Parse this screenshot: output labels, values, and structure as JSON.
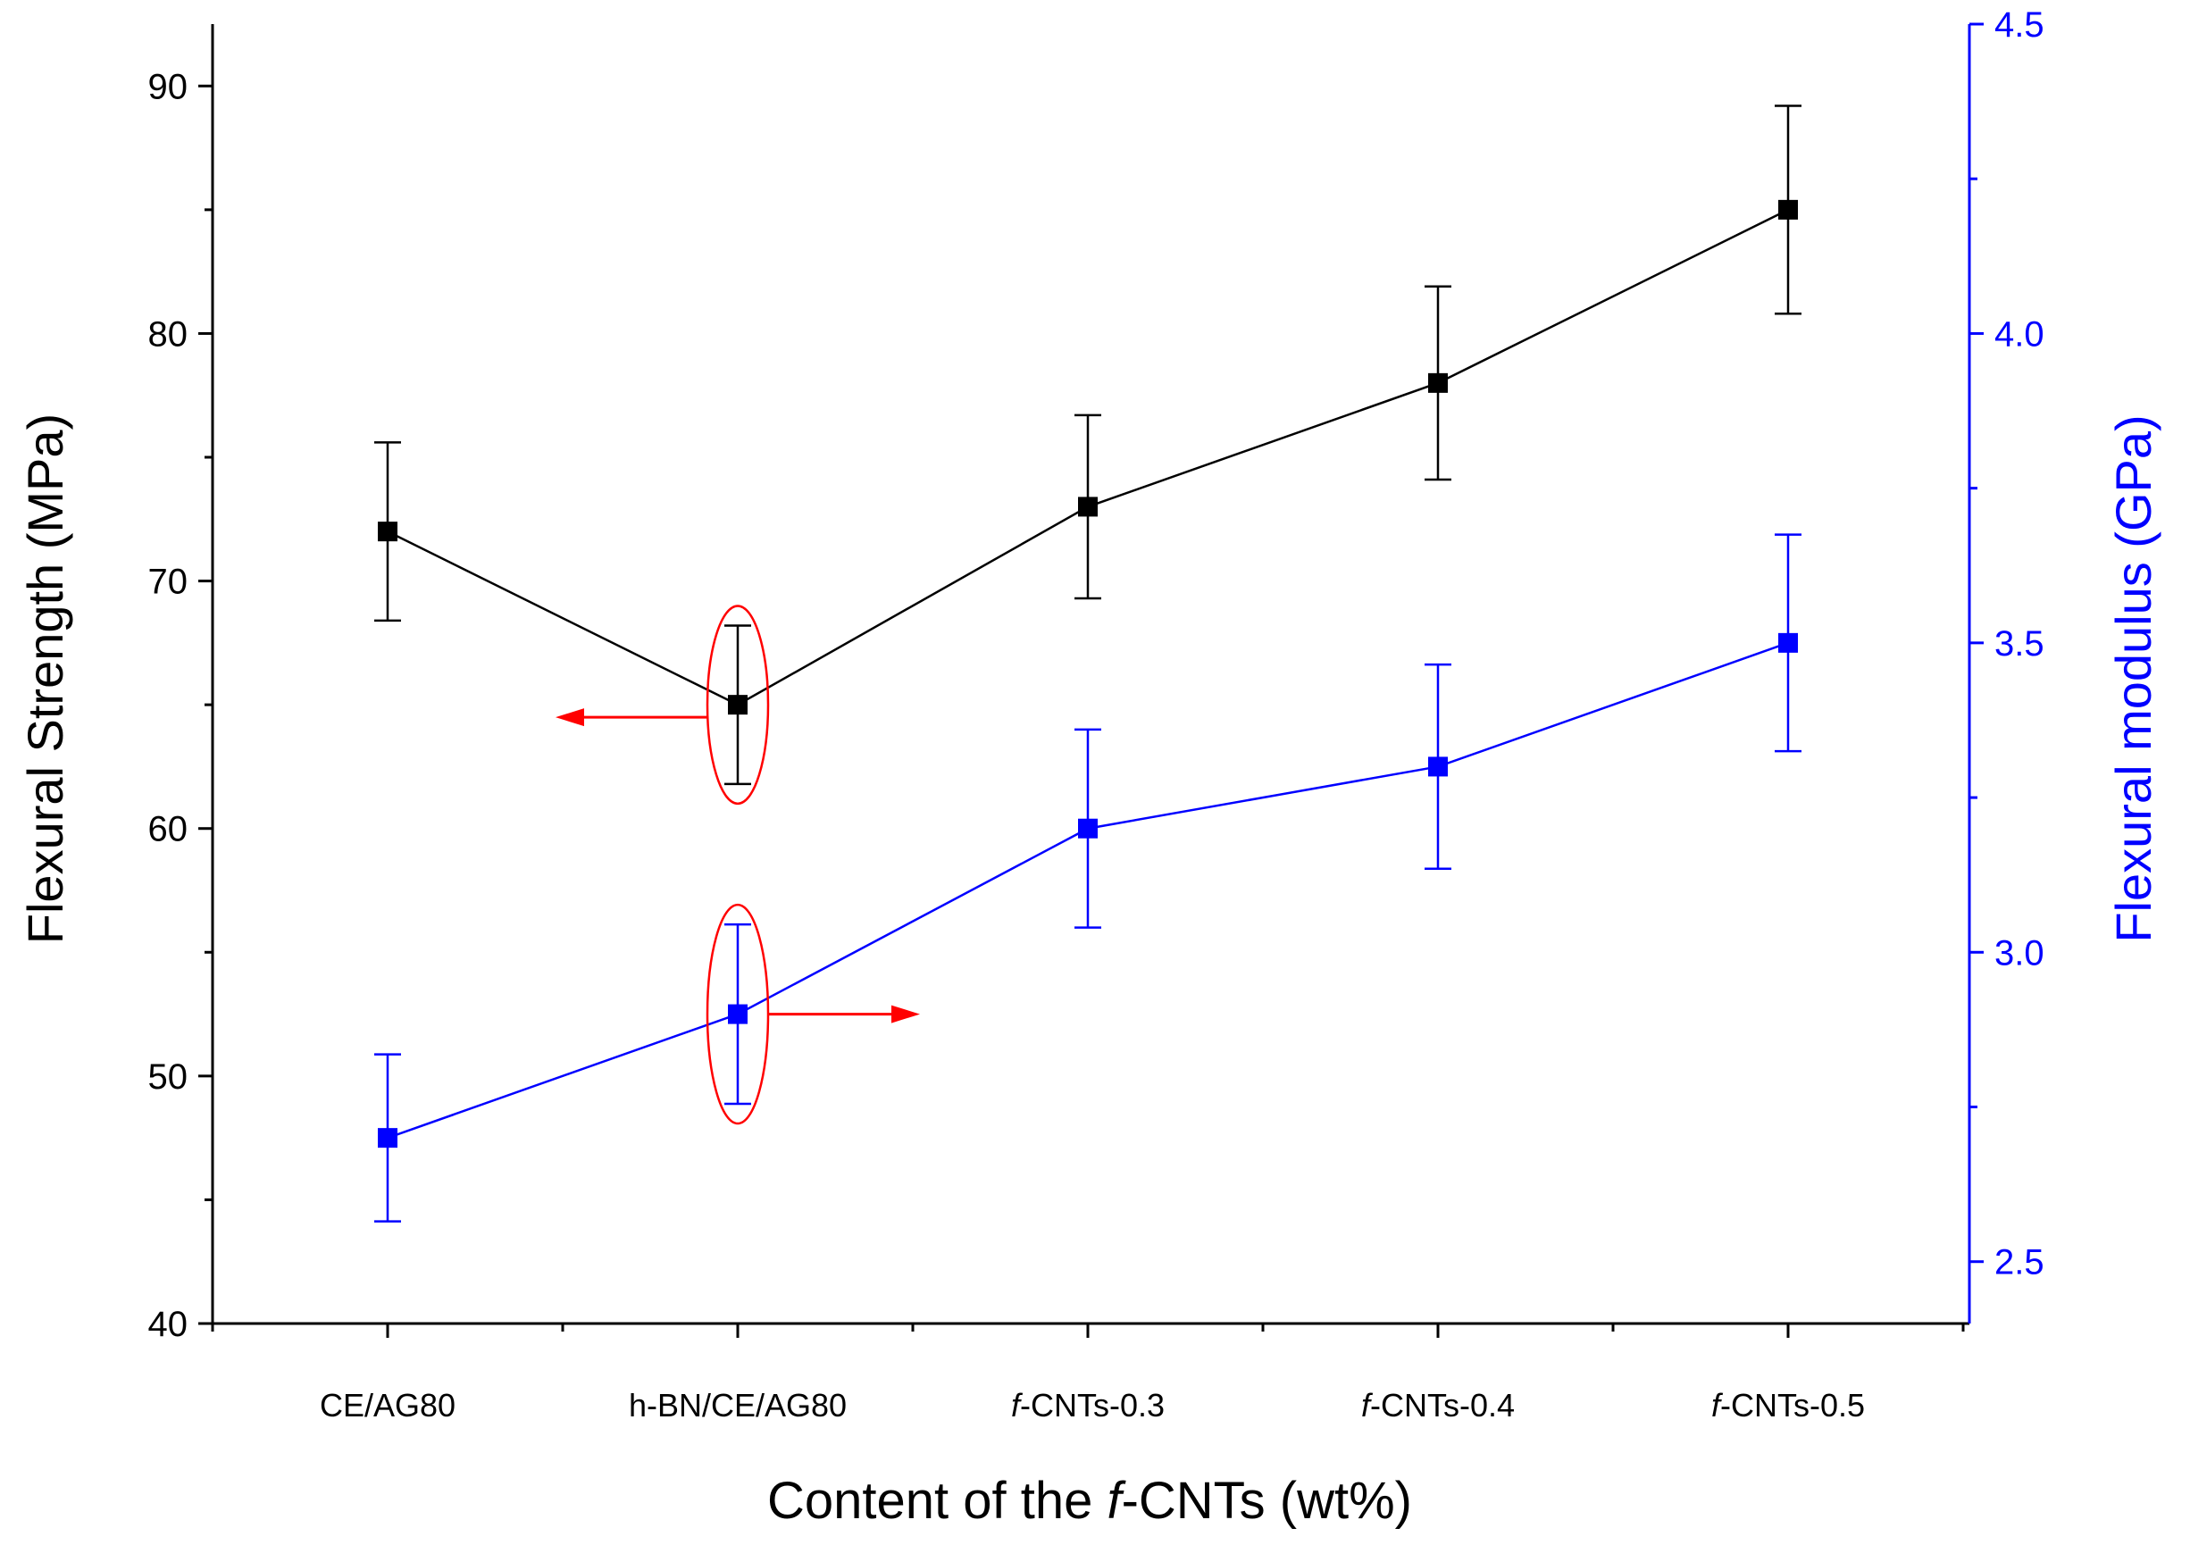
{
  "chart_data": {
    "type": "line",
    "xlabel_prefix": "Content of the ",
    "xlabel_italic": "f",
    "xlabel_suffix": "-CNTs (wt%)",
    "ylabel_left": "Flexural Strength (MPa)",
    "ylabel_right": "Flexural modulus (GPa)",
    "categories": [
      {
        "italic": "",
        "text": "CE/AG80"
      },
      {
        "italic": "",
        "text": "h-BN/CE/AG80"
      },
      {
        "italic": "f",
        "text": "-CNTs-0.3"
      },
      {
        "italic": "f",
        "text": "-CNTs-0.4"
      },
      {
        "italic": "f",
        "text": "-CNTs-0.5"
      }
    ],
    "y_left": {
      "min": 40,
      "max": 92.5,
      "ticks": [
        "40",
        "50",
        "60",
        "70",
        "80",
        "90"
      ],
      "minor_step": 5
    },
    "y_right": {
      "min": 2.4,
      "max": 4.5,
      "ticks": [
        "2.5",
        "3.0",
        "3.5",
        "4.0",
        "4.5"
      ],
      "minor_step": 0.25
    },
    "series": [
      {
        "name": "Flexural Strength",
        "axis": "left",
        "color": "#000000",
        "values": [
          72.0,
          65.0,
          73.0,
          78.0,
          85.0
        ],
        "err": [
          3.6,
          3.2,
          3.7,
          3.9,
          4.2
        ]
      },
      {
        "name": "Flexural modulus",
        "axis": "right",
        "color": "#0000ff",
        "values": [
          2.7,
          2.9,
          3.2,
          3.3,
          3.5
        ],
        "err": [
          0.135,
          0.145,
          0.16,
          0.165,
          0.175
        ]
      }
    ],
    "annotations": [
      {
        "series": 0,
        "point": 1,
        "arrow": "left",
        "color": "#ff0000"
      },
      {
        "series": 1,
        "point": 1,
        "arrow": "right",
        "color": "#ff0000"
      }
    ],
    "colors": {
      "left_axis": "#000000",
      "right_axis": "#0000ff",
      "annotation": "#ff0000"
    }
  }
}
